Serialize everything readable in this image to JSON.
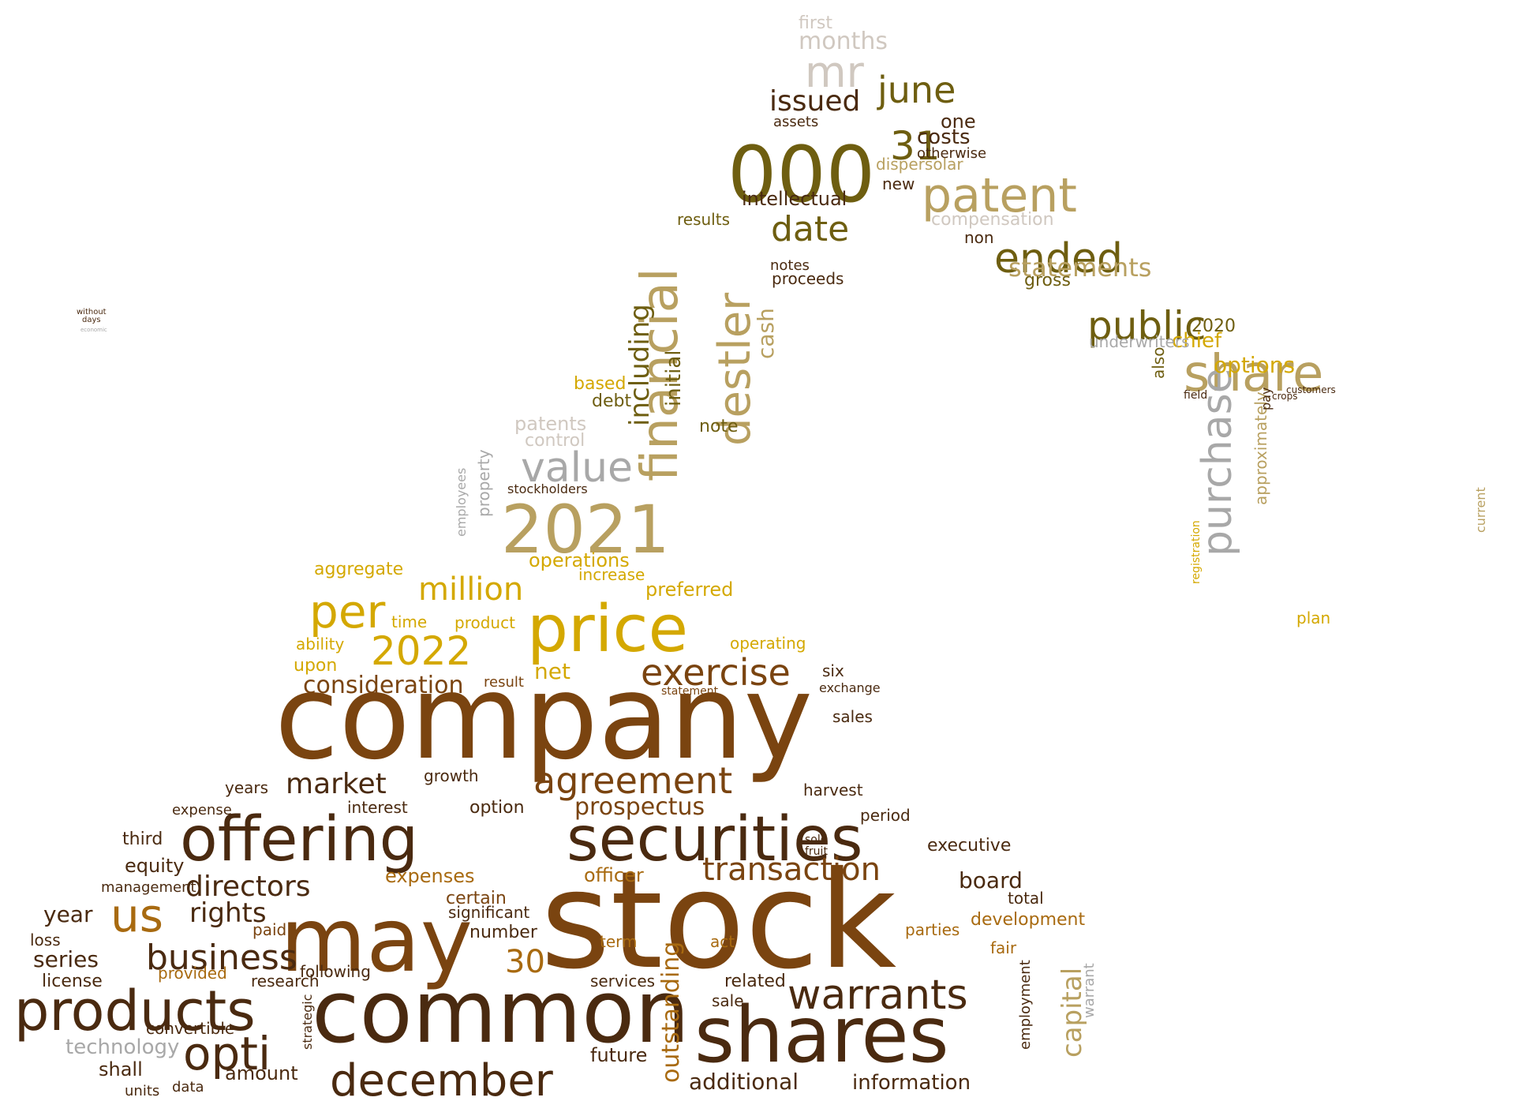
{
  "wordcloud": {
    "palette": {
      "dark_brown": "#4a2a10",
      "brown": "#7a4410",
      "amber": "#a86a10",
      "gold": "#d4a800",
      "olive": "#6e5e10",
      "khaki": "#b8a060",
      "grey": "#a8a8a8",
      "light_grey": "#d0c8c0"
    },
    "words": [
      {
        "text": "company"
      },
      {
        "text": "stock"
      },
      {
        "text": "common"
      },
      {
        "text": "shares"
      },
      {
        "text": "may"
      },
      {
        "text": "offering"
      },
      {
        "text": "securities"
      },
      {
        "text": "products"
      },
      {
        "text": "price"
      },
      {
        "text": "000"
      },
      {
        "text": "2021"
      },
      {
        "text": "financial"
      },
      {
        "text": "share"
      },
      {
        "text": "patent"
      },
      {
        "text": "public"
      },
      {
        "text": "ended"
      },
      {
        "text": "purchase"
      },
      {
        "text": "december"
      },
      {
        "text": "warrants"
      },
      {
        "text": "us"
      },
      {
        "text": "opti"
      },
      {
        "text": "agreement"
      },
      {
        "text": "exercise"
      },
      {
        "text": "consideration"
      },
      {
        "text": "2022"
      },
      {
        "text": "per"
      },
      {
        "text": "million"
      },
      {
        "text": "value"
      },
      {
        "text": "date"
      },
      {
        "text": "june"
      },
      {
        "text": "31"
      },
      {
        "text": "mr"
      },
      {
        "text": "destler"
      },
      {
        "text": "business"
      },
      {
        "text": "directors"
      },
      {
        "text": "transaction"
      },
      {
        "text": "market"
      },
      {
        "text": "prospectus"
      },
      {
        "text": "30"
      },
      {
        "text": "rights"
      },
      {
        "text": "months"
      },
      {
        "text": "issued"
      },
      {
        "text": "statements"
      },
      {
        "text": "options"
      },
      {
        "text": "capital"
      },
      {
        "text": "outstanding"
      },
      {
        "text": "including"
      },
      {
        "text": "initial"
      },
      {
        "text": "cash"
      },
      {
        "text": "intellectual"
      },
      {
        "text": "costs"
      },
      {
        "text": "one"
      },
      {
        "text": "operations"
      },
      {
        "text": "preferred"
      },
      {
        "text": "net"
      },
      {
        "text": "board"
      },
      {
        "text": "year"
      },
      {
        "text": "series"
      },
      {
        "text": "information"
      },
      {
        "text": "additional"
      },
      {
        "text": "future"
      },
      {
        "text": "amount"
      },
      {
        "text": "technology"
      },
      {
        "text": "shall"
      },
      {
        "text": "equity"
      },
      {
        "text": "officer"
      },
      {
        "text": "expenses"
      },
      {
        "text": "development"
      },
      {
        "text": "executive"
      },
      {
        "text": "chief"
      },
      {
        "text": "underwriters"
      },
      {
        "text": "approximately"
      },
      {
        "text": "compensation"
      },
      {
        "text": "gross"
      },
      {
        "text": "dispersolar"
      },
      {
        "text": "otherwise"
      },
      {
        "text": "results"
      },
      {
        "text": "proceeds"
      },
      {
        "text": "notes"
      },
      {
        "text": "assets"
      },
      {
        "text": "patents"
      },
      {
        "text": "control"
      },
      {
        "text": "based"
      },
      {
        "text": "debt"
      },
      {
        "text": "note"
      },
      {
        "text": "aggregate"
      },
      {
        "text": "time"
      },
      {
        "text": "upon"
      },
      {
        "text": "ability"
      },
      {
        "text": "product"
      },
      {
        "text": "increase"
      },
      {
        "text": "operating"
      },
      {
        "text": "six"
      },
      {
        "text": "exchange"
      },
      {
        "text": "growth"
      },
      {
        "text": "option"
      },
      {
        "text": "interest"
      },
      {
        "text": "harvest"
      },
      {
        "text": "sales"
      },
      {
        "text": "period"
      },
      {
        "text": "third"
      },
      {
        "text": "management"
      },
      {
        "text": "loss"
      },
      {
        "text": "license"
      },
      {
        "text": "paid"
      },
      {
        "text": "certain"
      },
      {
        "text": "significant"
      },
      {
        "text": "number"
      },
      {
        "text": "following"
      },
      {
        "text": "provided"
      },
      {
        "text": "research"
      },
      {
        "text": "convertible"
      },
      {
        "text": "term"
      },
      {
        "text": "act"
      },
      {
        "text": "services"
      },
      {
        "text": "related"
      },
      {
        "text": "sale"
      },
      {
        "text": "total"
      },
      {
        "text": "fair"
      },
      {
        "text": "parties"
      },
      {
        "text": "employment"
      },
      {
        "text": "warrant"
      },
      {
        "text": "first"
      },
      {
        "text": "new"
      },
      {
        "text": "non"
      },
      {
        "text": "2020"
      },
      {
        "text": "also"
      },
      {
        "text": "field"
      },
      {
        "text": "pay"
      },
      {
        "text": "plan"
      },
      {
        "text": "current"
      },
      {
        "text": "registration"
      },
      {
        "text": "property"
      },
      {
        "text": "employees"
      },
      {
        "text": "stockholders"
      },
      {
        "text": "years"
      },
      {
        "text": "expense"
      },
      {
        "text": "units"
      },
      {
        "text": "data"
      },
      {
        "text": "strategic"
      },
      {
        "text": "result"
      },
      {
        "text": "statement"
      },
      {
        "text": "sold"
      },
      {
        "text": "fruit"
      },
      {
        "text": "crops"
      },
      {
        "text": "customers"
      },
      {
        "text": "without"
      },
      {
        "text": "days"
      },
      {
        "text": "economic"
      }
    ]
  }
}
